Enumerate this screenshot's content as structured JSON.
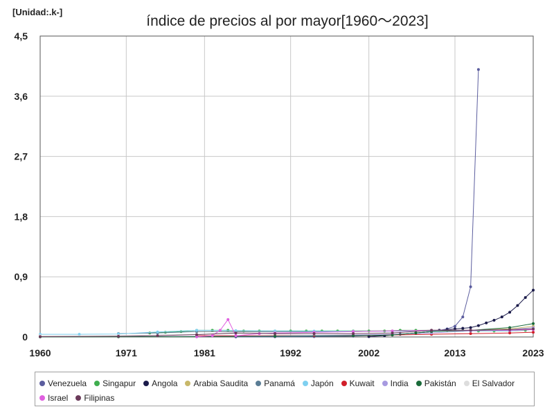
{
  "header": {
    "unit": "[Unidad:.k-]",
    "title": "índice de precios al por mayor[1960～2023]"
  },
  "chart_data": {
    "type": "line",
    "title": "índice de precios al por mayor[1960～2023]",
    "unit": "[Unidad:.k-]",
    "xlabel": "",
    "ylabel": "",
    "xlim": [
      1960,
      2023
    ],
    "ylim": [
      0,
      4.5
    ],
    "x_ticks": [
      "1960",
      "1971",
      "1981",
      "1992",
      "2002",
      "2013",
      "2023"
    ],
    "y_ticks": [
      "0",
      "0,9",
      "1,8",
      "2,7",
      "3,6",
      "4,5"
    ],
    "grid": true,
    "legend_position": "bottom",
    "series": [
      {
        "name": "Venezuela",
        "color": "#5b5d9e",
        "points": [
          [
            1985,
            0.001
          ],
          [
            1990,
            0.002
          ],
          [
            1995,
            0.005
          ],
          [
            2000,
            0.012
          ],
          [
            2005,
            0.03
          ],
          [
            2008,
            0.06
          ],
          [
            2010,
            0.08
          ],
          [
            2011,
            0.1
          ],
          [
            2012,
            0.12
          ],
          [
            2013,
            0.16
          ],
          [
            2014,
            0.3
          ],
          [
            2015,
            0.75
          ],
          [
            2016,
            4.0
          ]
        ]
      },
      {
        "name": "Singapur",
        "color": "#3fae4f",
        "points": [
          [
            1974,
            0.06
          ],
          [
            1976,
            0.07
          ],
          [
            1978,
            0.08
          ],
          [
            1980,
            0.1
          ],
          [
            1982,
            0.1
          ],
          [
            1984,
            0.1
          ],
          [
            1986,
            0.09
          ],
          [
            1988,
            0.09
          ],
          [
            1990,
            0.09
          ],
          [
            1992,
            0.09
          ],
          [
            1994,
            0.09
          ],
          [
            1996,
            0.09
          ],
          [
            1998,
            0.09
          ],
          [
            2000,
            0.09
          ],
          [
            2002,
            0.09
          ],
          [
            2004,
            0.09
          ],
          [
            2006,
            0.1
          ],
          [
            2008,
            0.1
          ],
          [
            2010,
            0.1
          ],
          [
            2012,
            0.1
          ],
          [
            2014,
            0.1
          ],
          [
            2016,
            0.09
          ],
          [
            2018,
            0.09
          ],
          [
            2020,
            0.09
          ],
          [
            2022,
            0.1
          ],
          [
            2023,
            0.12
          ]
        ]
      },
      {
        "name": "Angola",
        "color": "#1b1b4a",
        "points": [
          [
            2002,
            0.005
          ],
          [
            2004,
            0.02
          ],
          [
            2006,
            0.04
          ],
          [
            2008,
            0.06
          ],
          [
            2010,
            0.08
          ],
          [
            2011,
            0.1
          ],
          [
            2012,
            0.11
          ],
          [
            2013,
            0.12
          ],
          [
            2014,
            0.13
          ],
          [
            2015,
            0.14
          ],
          [
            2016,
            0.17
          ],
          [
            2017,
            0.21
          ],
          [
            2018,
            0.25
          ],
          [
            2019,
            0.3
          ],
          [
            2020,
            0.37
          ],
          [
            2021,
            0.47
          ],
          [
            2022,
            0.59
          ],
          [
            2023,
            0.7
          ]
        ]
      },
      {
        "name": "Arabia Saudita",
        "color": "#c8b86a",
        "points": [
          [
            1980,
            0.08
          ],
          [
            1985,
            0.08
          ],
          [
            1990,
            0.08
          ],
          [
            1995,
            0.08
          ],
          [
            2000,
            0.08
          ],
          [
            2005,
            0.09
          ],
          [
            2010,
            0.1
          ],
          [
            2015,
            0.1
          ],
          [
            2020,
            0.12
          ],
          [
            2023,
            0.16
          ]
        ]
      },
      {
        "name": "Panamá",
        "color": "#5a7d95",
        "points": [
          [
            1970,
            0.05
          ],
          [
            1975,
            0.06
          ],
          [
            1980,
            0.08
          ],
          [
            1985,
            0.08
          ],
          [
            1990,
            0.08
          ],
          [
            1995,
            0.08
          ],
          [
            2000,
            0.08
          ],
          [
            2005,
            0.09
          ],
          [
            2010,
            0.1
          ],
          [
            2015,
            0.1
          ],
          [
            2020,
            0.1
          ],
          [
            2023,
            0.11
          ]
        ]
      },
      {
        "name": "Japón",
        "color": "#7fd0f0",
        "points": [
          [
            1960,
            0.04
          ],
          [
            1965,
            0.04
          ],
          [
            1970,
            0.045
          ],
          [
            1975,
            0.075
          ],
          [
            1980,
            0.1
          ],
          [
            1985,
            0.095
          ],
          [
            1990,
            0.09
          ],
          [
            1995,
            0.088
          ],
          [
            2000,
            0.085
          ],
          [
            2005,
            0.085
          ],
          [
            2010,
            0.09
          ],
          [
            2015,
            0.09
          ],
          [
            2020,
            0.09
          ],
          [
            2023,
            0.11
          ]
        ]
      },
      {
        "name": "Kuwait",
        "color": "#d11f2a",
        "points": [
          [
            1980,
            0.02
          ],
          [
            1985,
            0.02
          ],
          [
            1990,
            0.02
          ],
          [
            1995,
            0.02
          ],
          [
            2000,
            0.02
          ],
          [
            2005,
            0.03
          ],
          [
            2010,
            0.04
          ],
          [
            2015,
            0.05
          ],
          [
            2020,
            0.06
          ],
          [
            2023,
            0.07
          ]
        ]
      },
      {
        "name": "India",
        "color": "#a79ae0",
        "points": [
          [
            1960,
            0.002
          ],
          [
            1970,
            0.004
          ],
          [
            1980,
            0.008
          ],
          [
            1990,
            0.015
          ],
          [
            2000,
            0.03
          ],
          [
            2005,
            0.04
          ],
          [
            2010,
            0.06
          ],
          [
            2015,
            0.09
          ],
          [
            2020,
            0.11
          ],
          [
            2023,
            0.14
          ]
        ]
      },
      {
        "name": "Pakistán",
        "color": "#1a6b3a",
        "points": [
          [
            1960,
            0.001
          ],
          [
            1970,
            0.002
          ],
          [
            1980,
            0.005
          ],
          [
            1990,
            0.01
          ],
          [
            2000,
            0.02
          ],
          [
            2005,
            0.03
          ],
          [
            2008,
            0.06
          ],
          [
            2010,
            0.08
          ],
          [
            2015,
            0.1
          ],
          [
            2020,
            0.14
          ],
          [
            2023,
            0.2
          ]
        ]
      },
      {
        "name": "El Salvador",
        "color": "#dddddd",
        "points": [
          [
            1960,
            0.02
          ],
          [
            1970,
            0.02
          ],
          [
            1980,
            0.04
          ],
          [
            1990,
            0.06
          ],
          [
            2000,
            0.08
          ],
          [
            2010,
            0.1
          ],
          [
            2015,
            0.1
          ],
          [
            2020,
            0.11
          ],
          [
            2023,
            0.12
          ]
        ]
      },
      {
        "name": "Israel",
        "color": "#e060e0",
        "points": [
          [
            1980,
            0.001
          ],
          [
            1982,
            0.02
          ],
          [
            1983,
            0.1
          ],
          [
            1984,
            0.26
          ],
          [
            1985,
            0.02
          ],
          [
            1988,
            0.05
          ],
          [
            1990,
            0.06
          ],
          [
            1995,
            0.07
          ],
          [
            2000,
            0.08
          ],
          [
            2005,
            0.09
          ],
          [
            2010,
            0.1
          ],
          [
            2015,
            0.1
          ],
          [
            2020,
            0.1
          ],
          [
            2023,
            0.11
          ]
        ]
      },
      {
        "name": "Filipinas",
        "color": "#6b3a5a",
        "points": [
          [
            1960,
            0.005
          ],
          [
            1970,
            0.01
          ],
          [
            1975,
            0.02
          ],
          [
            1980,
            0.035
          ],
          [
            1985,
            0.06
          ],
          [
            1990,
            0.05
          ],
          [
            1995,
            0.05
          ],
          [
            2000,
            0.05
          ],
          [
            2005,
            0.06
          ],
          [
            2010,
            0.1
          ],
          [
            2015,
            0.1
          ],
          [
            2020,
            0.11
          ],
          [
            2023,
            0.12
          ]
        ]
      }
    ]
  }
}
